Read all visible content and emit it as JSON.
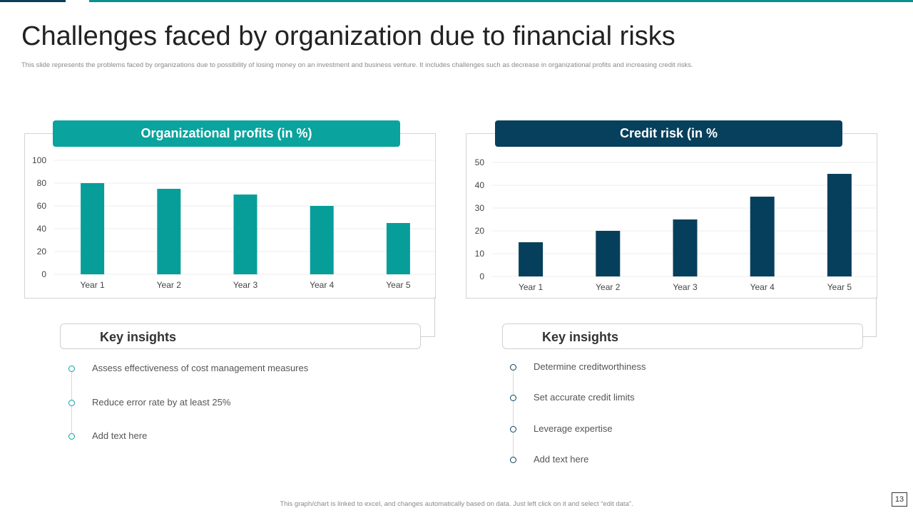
{
  "slide": {
    "title": "Challenges faced by organization due to financial risks",
    "subtitle": "This slide represents the problems faced by organizations due to possibility of losing money on an investment and business venture. It includes challenges such as decrease in organizational profits and increasing credit risks.",
    "footer": "This graph/chart is linked to excel, and changes automatically based on data. Just left click on it and select “edit data”.",
    "page_number": "13"
  },
  "colors": {
    "teal": "#0aa39e",
    "navy": "#07405c",
    "bar_teal": "#079e9a",
    "bar_navy": "#063f5c"
  },
  "chart_data": [
    {
      "type": "bar",
      "title": "Organizational profits (in %)",
      "categories": [
        "Year 1",
        "Year 2",
        "Year 3",
        "Year 4",
        "Year 5"
      ],
      "values": [
        80,
        75,
        70,
        60,
        45
      ],
      "ylim": [
        0,
        100
      ],
      "yticks": [
        "0",
        "20",
        "40",
        "60",
        "80",
        "100"
      ],
      "xlabel": "",
      "ylabel": "",
      "grid": true
    },
    {
      "type": "bar",
      "title": "Credit risk (in %",
      "categories": [
        "Year 1",
        "Year 2",
        "Year 3",
        "Year 4",
        "Year 5"
      ],
      "values": [
        15,
        20,
        25,
        35,
        45
      ],
      "ylim": [
        0,
        50
      ],
      "yticks": [
        "0",
        "10",
        "20",
        "30",
        "40",
        "50"
      ],
      "xlabel": "",
      "ylabel": "",
      "grid": true
    }
  ],
  "left_insights": {
    "title": "Key insights",
    "items": [
      "Assess effectiveness  of cost management  measures",
      "Reduce  error  rate  by at least  25%",
      "Add text here"
    ]
  },
  "right_insights": {
    "title": "Key insights",
    "items": [
      "Determine  creditworthiness",
      "Set accurate credit limits",
      "Leverage  expertise",
      "Add text here"
    ]
  }
}
